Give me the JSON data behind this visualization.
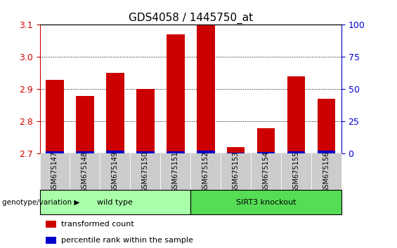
{
  "title": "GDS4058 / 1445750_at",
  "samples": [
    "GSM675147",
    "GSM675148",
    "GSM675149",
    "GSM675150",
    "GSM675151",
    "GSM675152",
    "GSM675153",
    "GSM675154",
    "GSM675155",
    "GSM675156"
  ],
  "transformed_counts": [
    2.93,
    2.88,
    2.95,
    2.9,
    3.07,
    3.1,
    2.72,
    2.78,
    2.94,
    2.87
  ],
  "percentile_values": [
    2.0,
    2.0,
    2.5,
    2.0,
    2.0,
    2.5,
    1.0,
    1.5,
    2.0,
    2.5
  ],
  "ylim_left": [
    2.7,
    3.1
  ],
  "ylim_right": [
    0,
    100
  ],
  "yticks_left": [
    2.7,
    2.8,
    2.9,
    3.0,
    3.1
  ],
  "yticks_right": [
    0,
    25,
    50,
    75,
    100
  ],
  "bar_bottom": 2.7,
  "red_color": "#cc0000",
  "blue_color": "#0000cc",
  "groups": [
    {
      "label": "wild type",
      "indices": [
        0,
        1,
        2,
        3,
        4
      ],
      "color": "#aaffaa"
    },
    {
      "label": "SIRT3 knockout",
      "indices": [
        5,
        6,
        7,
        8,
        9
      ],
      "color": "#55dd55"
    }
  ],
  "group_label_prefix": "genotype/variation",
  "legend_items": [
    {
      "label": "transformed count",
      "color": "#cc0000"
    },
    {
      "label": "percentile rank within the sample",
      "color": "#0000cc"
    }
  ],
  "bar_width": 0.6,
  "tick_color_left": "#cc0000",
  "tick_color_right": "#0000cc",
  "title_fontsize": 11,
  "axis_fontsize": 9,
  "legend_fontsize": 8
}
